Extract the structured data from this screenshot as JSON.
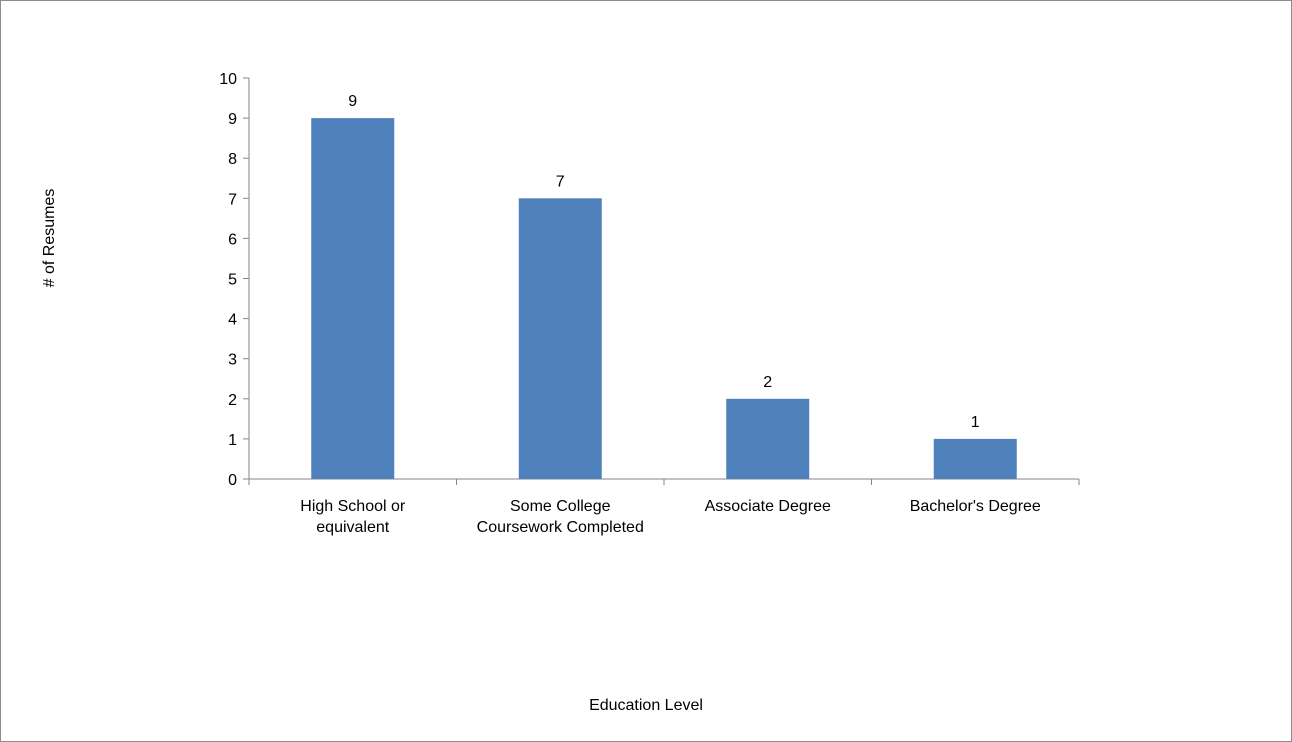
{
  "chart_data": {
    "type": "bar",
    "title": "",
    "xlabel": "Education Level",
    "ylabel": "# of Resumes",
    "categories": [
      [
        "High School or",
        "equivalent"
      ],
      [
        "Some College",
        "Coursework Completed"
      ],
      [
        "Associate Degree"
      ],
      [
        "Bachelor's Degree"
      ]
    ],
    "values": [
      9,
      7,
      2,
      1
    ],
    "data_labels": [
      "9",
      "7",
      "2",
      "1"
    ],
    "ylim": [
      0,
      10
    ],
    "yticks": [
      "0",
      "1",
      "2",
      "3",
      "4",
      "5",
      "6",
      "7",
      "8",
      "9",
      "10"
    ],
    "grid": false,
    "legend": "none",
    "bar_color": "#4f81bd"
  }
}
